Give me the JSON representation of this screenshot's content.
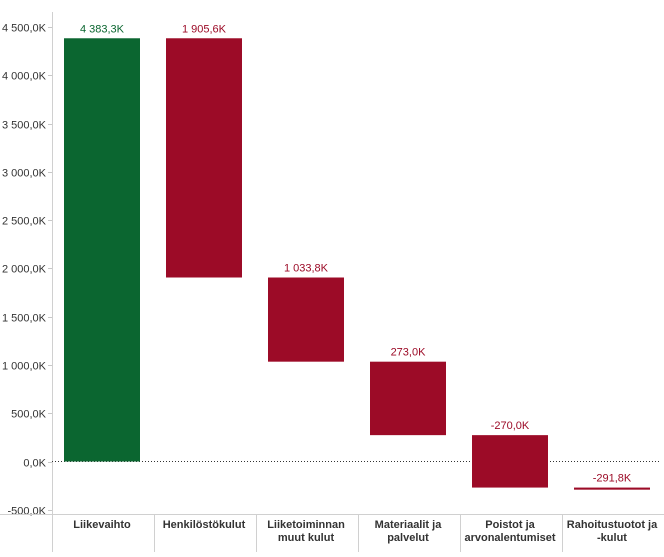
{
  "chart_data": {
    "type": "bar",
    "subtype": "waterfall",
    "title": "",
    "xlabel": "",
    "ylabel": "",
    "ylim": [
      -500,
      4500
    ],
    "grid": false,
    "zero_line": "dotted",
    "y_ticks": [
      {
        "value": 4500,
        "label": "4 500,0K"
      },
      {
        "value": 4000,
        "label": "4 000,0K"
      },
      {
        "value": 3500,
        "label": "3 500,0K"
      },
      {
        "value": 3000,
        "label": "3 000,0K"
      },
      {
        "value": 2500,
        "label": "2 500,0K"
      },
      {
        "value": 2000,
        "label": "2 000,0K"
      },
      {
        "value": 1500,
        "label": "1 500,0K"
      },
      {
        "value": 1000,
        "label": "1 000,0K"
      },
      {
        "value": 500,
        "label": "500,0K"
      },
      {
        "value": 0,
        "label": "0,0K"
      },
      {
        "value": -500,
        "label": "-500,0K"
      }
    ],
    "categories": [
      [
        "Liikevaihto"
      ],
      [
        "Henkilöstökulut"
      ],
      [
        "Liiketoiminnan",
        "muut kulut"
      ],
      [
        "Materiaalit ja",
        "palvelut"
      ],
      [
        "Poistot ja",
        "arvonalentumiset"
      ],
      [
        "Rahoitustuotot ja",
        "-kulut"
      ]
    ],
    "bars": [
      {
        "start": 0,
        "end": 4383.3,
        "label": "4 383,3K",
        "color": "#0b6630",
        "label_color": "#0b6630"
      },
      {
        "start": 4383.3,
        "end": 1905.6,
        "label": "1 905,6K",
        "color": "#9c0b27",
        "label_color": "#9c0b27"
      },
      {
        "start": 1905.6,
        "end": 1033.8,
        "label": "1 033,8K",
        "color": "#9c0b27",
        "label_color": "#9c0b27"
      },
      {
        "start": 1033.8,
        "end": 273.0,
        "label": "273,0K",
        "color": "#9c0b27",
        "label_color": "#9c0b27"
      },
      {
        "start": 273.0,
        "end": -270.0,
        "label": "-270,0K",
        "color": "#9c0b27",
        "label_color": "#9c0b27"
      },
      {
        "start": -270.0,
        "end": -291.8,
        "label": "-291,8K",
        "color": "#9c0b27",
        "label_color": "#9c0b27"
      }
    ]
  }
}
